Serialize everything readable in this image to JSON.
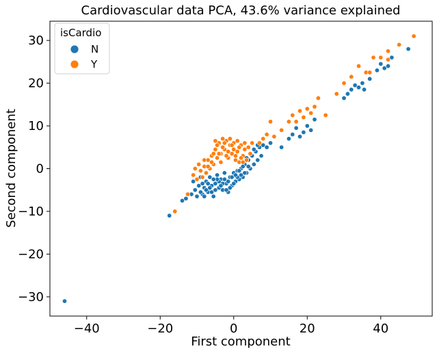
{
  "chart_data": {
    "type": "scatter",
    "title": "Cardiovascular data PCA, 43.6% variance explained",
    "xlabel": "First component",
    "ylabel": "Second component",
    "xlim": [
      -50,
      54
    ],
    "ylim": [
      -34.5,
      34.5
    ],
    "xticks": [
      -40,
      -20,
      0,
      20,
      40
    ],
    "yticks": [
      -30,
      -20,
      -10,
      0,
      10,
      20,
      30
    ],
    "grid": false,
    "legend": {
      "title": "isCardio",
      "placement": "top-left",
      "entries": [
        {
          "label": "N",
          "color": "#1f77b4"
        },
        {
          "label": "Y",
          "color": "#ff7f0e"
        }
      ]
    },
    "series": [
      {
        "name": "N",
        "color": "#1f77b4",
        "points": [
          [
            -46,
            -31
          ],
          [
            -17.5,
            -11
          ],
          [
            -14,
            -7.5
          ],
          [
            -13,
            -7
          ],
          [
            -11.5,
            -6
          ],
          [
            -11,
            -3
          ],
          [
            -10.5,
            -5
          ],
          [
            -10,
            -6.5
          ],
          [
            -9.5,
            -4
          ],
          [
            -9,
            -2
          ],
          [
            -8.5,
            -6
          ],
          [
            -8,
            -4.5
          ],
          [
            -7.5,
            -3
          ],
          [
            -7,
            -5.5
          ],
          [
            -6.5,
            -2
          ],
          [
            -6,
            -4
          ],
          [
            -5.5,
            -6.5
          ],
          [
            -5,
            -3.5
          ],
          [
            -4.5,
            -1.5
          ],
          [
            -4,
            -4.5
          ],
          [
            -3.5,
            -2.5
          ],
          [
            -3,
            -5
          ],
          [
            -2.5,
            -1
          ],
          [
            -2,
            -3.5
          ],
          [
            -1.5,
            -5.5
          ],
          [
            -1,
            -2
          ],
          [
            -0.5,
            -4
          ],
          [
            0,
            -1
          ],
          [
            0.5,
            -3
          ],
          [
            1,
            -0.5
          ],
          [
            1.5,
            -2.5
          ],
          [
            2,
            0
          ],
          [
            2.5,
            -2
          ],
          [
            3,
            1
          ],
          [
            3.5,
            -1
          ],
          [
            4,
            2
          ],
          [
            4.5,
            0
          ],
          [
            5,
            3
          ],
          [
            5.5,
            1
          ],
          [
            6,
            4
          ],
          [
            6.5,
            2
          ],
          [
            7,
            5
          ],
          [
            7.5,
            3
          ],
          [
            8,
            5.5
          ],
          [
            -9,
            -5.5
          ],
          [
            -8,
            -6.5
          ],
          [
            -7,
            -3.5
          ],
          [
            -6,
            -5.5
          ],
          [
            -5,
            -5
          ],
          [
            -4,
            -3
          ],
          [
            -3,
            -3.5
          ],
          [
            -2,
            -5
          ],
          [
            -1,
            -4.5
          ],
          [
            0,
            -3.5
          ],
          [
            1,
            -2
          ],
          [
            2,
            -1.5
          ],
          [
            3,
            -1
          ],
          [
            4,
            0.5
          ],
          [
            -4.5,
            -2.5
          ],
          [
            -3.5,
            -4
          ],
          [
            -2.5,
            -2.5
          ],
          [
            -1.5,
            -3
          ],
          [
            -0.5,
            -2
          ],
          [
            0.5,
            -1.5
          ],
          [
            1.5,
            -0.5
          ],
          [
            2.5,
            0.5
          ],
          [
            -6.5,
            -4.5
          ],
          [
            -5.5,
            -2.5
          ],
          [
            -7.5,
            -5
          ],
          [
            -8.5,
            -3.5
          ],
          [
            3.5,
            2.5
          ],
          [
            4.5,
            3.5
          ],
          [
            5.5,
            4.5
          ],
          [
            6.5,
            5.5
          ],
          [
            9,
            5
          ],
          [
            10,
            6
          ],
          [
            13,
            5
          ],
          [
            15,
            7
          ],
          [
            16,
            8
          ],
          [
            17,
            9.5
          ],
          [
            18,
            7.5
          ],
          [
            19,
            8.5
          ],
          [
            20,
            10
          ],
          [
            21,
            9
          ],
          [
            22,
            11.5
          ],
          [
            30,
            16.5
          ],
          [
            31,
            17.5
          ],
          [
            32,
            18.5
          ],
          [
            33,
            19.5
          ],
          [
            34,
            19
          ],
          [
            35,
            20
          ],
          [
            35.5,
            18.5
          ],
          [
            36,
            22.5
          ],
          [
            37,
            21
          ],
          [
            39,
            23
          ],
          [
            40,
            24.5
          ],
          [
            41,
            23.5
          ],
          [
            42,
            24
          ],
          [
            43,
            26
          ],
          [
            47.5,
            28
          ]
        ]
      },
      {
        "name": "Y",
        "color": "#ff7f0e",
        "points": [
          [
            -16,
            -10
          ],
          [
            -12.5,
            -6
          ],
          [
            -11,
            -1.5
          ],
          [
            -10.5,
            0
          ],
          [
            -10,
            -2.5
          ],
          [
            -9.5,
            1
          ],
          [
            -9,
            -0.5
          ],
          [
            -8.5,
            -2
          ],
          [
            -8,
            0.5
          ],
          [
            -7.5,
            -1
          ],
          [
            -7,
            2
          ],
          [
            -6.5,
            0
          ],
          [
            -6,
            3
          ],
          [
            -5.5,
            1
          ],
          [
            -5,
            4.5
          ],
          [
            -4.5,
            2.5
          ],
          [
            -4,
            6
          ],
          [
            -3.5,
            3.5
          ],
          [
            -3,
            7
          ],
          [
            -2.5,
            4.5
          ],
          [
            -2,
            6.5
          ],
          [
            -1.5,
            2.5
          ],
          [
            -1,
            5.5
          ],
          [
            -0.5,
            3.5
          ],
          [
            0,
            6
          ],
          [
            0.5,
            2
          ],
          [
            1,
            4
          ],
          [
            1.5,
            1.5
          ],
          [
            2,
            5.5
          ],
          [
            2.5,
            3
          ],
          [
            3,
            4.5
          ],
          [
            3.5,
            2
          ],
          [
            4,
            5
          ],
          [
            4.5,
            3.5
          ],
          [
            5,
            6
          ],
          [
            -5,
            6.5
          ],
          [
            -4,
            3.5
          ],
          [
            -3,
            5
          ],
          [
            -2,
            3
          ],
          [
            -1,
            7
          ],
          [
            0,
            4.5
          ],
          [
            1,
            6.5
          ],
          [
            2,
            2.5
          ],
          [
            3,
            6
          ],
          [
            -6,
            1.5
          ],
          [
            -7,
            0.5
          ],
          [
            -8,
            2
          ],
          [
            -3.5,
            1.5
          ],
          [
            -2.5,
            6
          ],
          [
            -1.5,
            4
          ],
          [
            -0.5,
            5.5
          ],
          [
            0.5,
            3
          ],
          [
            1.5,
            5
          ],
          [
            2.5,
            1.5
          ],
          [
            -4.5,
            5.5
          ],
          [
            -5.5,
            3.5
          ],
          [
            7,
            6
          ],
          [
            8,
            7
          ],
          [
            9,
            8
          ],
          [
            10,
            11
          ],
          [
            11,
            7.5
          ],
          [
            13,
            9
          ],
          [
            15,
            11
          ],
          [
            16,
            12.5
          ],
          [
            17,
            11
          ],
          [
            18,
            13.5
          ],
          [
            19,
            12
          ],
          [
            20,
            14
          ],
          [
            21,
            13
          ],
          [
            22,
            14.5
          ],
          [
            23,
            16.5
          ],
          [
            25,
            12.5
          ],
          [
            28,
            17.5
          ],
          [
            30,
            20
          ],
          [
            32,
            21.5
          ],
          [
            34,
            24
          ],
          [
            36,
            22.5
          ],
          [
            37,
            22.5
          ],
          [
            38,
            26
          ],
          [
            40,
            26
          ],
          [
            42,
            25.5
          ],
          [
            42,
            27.5
          ],
          [
            45,
            29
          ],
          [
            49,
            31
          ]
        ]
      }
    ]
  }
}
